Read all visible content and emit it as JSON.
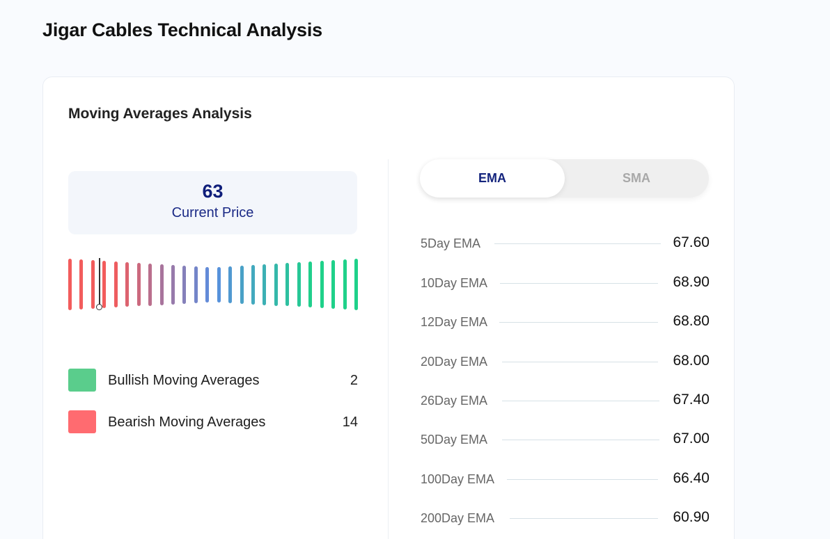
{
  "page_title": "Jigar Cables Technical Analysis",
  "card_title": "Moving Averages Analysis",
  "current_price": {
    "value": "63",
    "label": "Current Price"
  },
  "gauge": {
    "bars": 26,
    "needle_index": 3,
    "colors": {
      "bearish": "#f25c5c",
      "neutral": "#5a8ee0",
      "bullish": "#1fd18a"
    }
  },
  "legend": [
    {
      "label": "Bullish Moving Averages",
      "count": "2",
      "color": "#5acd8c"
    },
    {
      "label": "Bearish Moving Averages",
      "count": "14",
      "color": "#ff6b70"
    }
  ],
  "toggle": {
    "options": [
      "EMA",
      "SMA"
    ],
    "active": "EMA"
  },
  "ema_rows": [
    {
      "label": "5Day EMA",
      "value": "67.60"
    },
    {
      "label": "10Day EMA",
      "value": "68.90"
    },
    {
      "label": "12Day EMA",
      "value": "68.80"
    },
    {
      "label": "20Day EMA",
      "value": "68.00"
    },
    {
      "label": "26Day EMA",
      "value": "67.40"
    },
    {
      "label": "50Day EMA",
      "value": "67.00"
    },
    {
      "label": "100Day EMA",
      "value": "66.40"
    },
    {
      "label": "200Day EMA",
      "value": "60.90"
    }
  ]
}
